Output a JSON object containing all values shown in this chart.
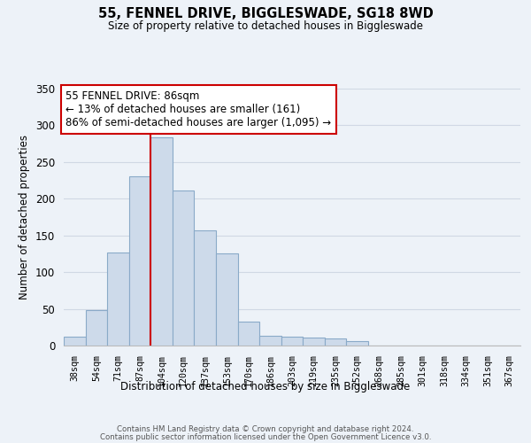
{
  "title": "55, FENNEL DRIVE, BIGGLESWADE, SG18 8WD",
  "subtitle": "Size of property relative to detached houses in Biggleswade",
  "xlabel": "Distribution of detached houses by size in Biggleswade",
  "ylabel": "Number of detached properties",
  "bar_labels": [
    "38sqm",
    "54sqm",
    "71sqm",
    "87sqm",
    "104sqm",
    "120sqm",
    "137sqm",
    "153sqm",
    "170sqm",
    "186sqm",
    "203sqm",
    "219sqm",
    "235sqm",
    "252sqm",
    "268sqm",
    "285sqm",
    "301sqm",
    "318sqm",
    "334sqm",
    "351sqm",
    "367sqm"
  ],
  "bar_heights": [
    12,
    48,
    127,
    231,
    284,
    211,
    157,
    126,
    33,
    13,
    12,
    11,
    10,
    6,
    0,
    0,
    0,
    0,
    0,
    0,
    0
  ],
  "bar_color": "#cddaea",
  "bar_edge_color": "#8aaac8",
  "vline_color": "#cc0000",
  "annotation_title": "55 FENNEL DRIVE: 86sqm",
  "annotation_line1": "← 13% of detached houses are smaller (161)",
  "annotation_line2": "86% of semi-detached houses are larger (1,095) →",
  "annotation_box_color": "#ffffff",
  "annotation_box_edge": "#cc0000",
  "ylim": [
    0,
    350
  ],
  "yticks": [
    0,
    50,
    100,
    150,
    200,
    250,
    300,
    350
  ],
  "footer1": "Contains HM Land Registry data © Crown copyright and database right 2024.",
  "footer2": "Contains public sector information licensed under the Open Government Licence v3.0.",
  "bg_color": "#edf2f8",
  "grid_color": "#d0d8e4"
}
